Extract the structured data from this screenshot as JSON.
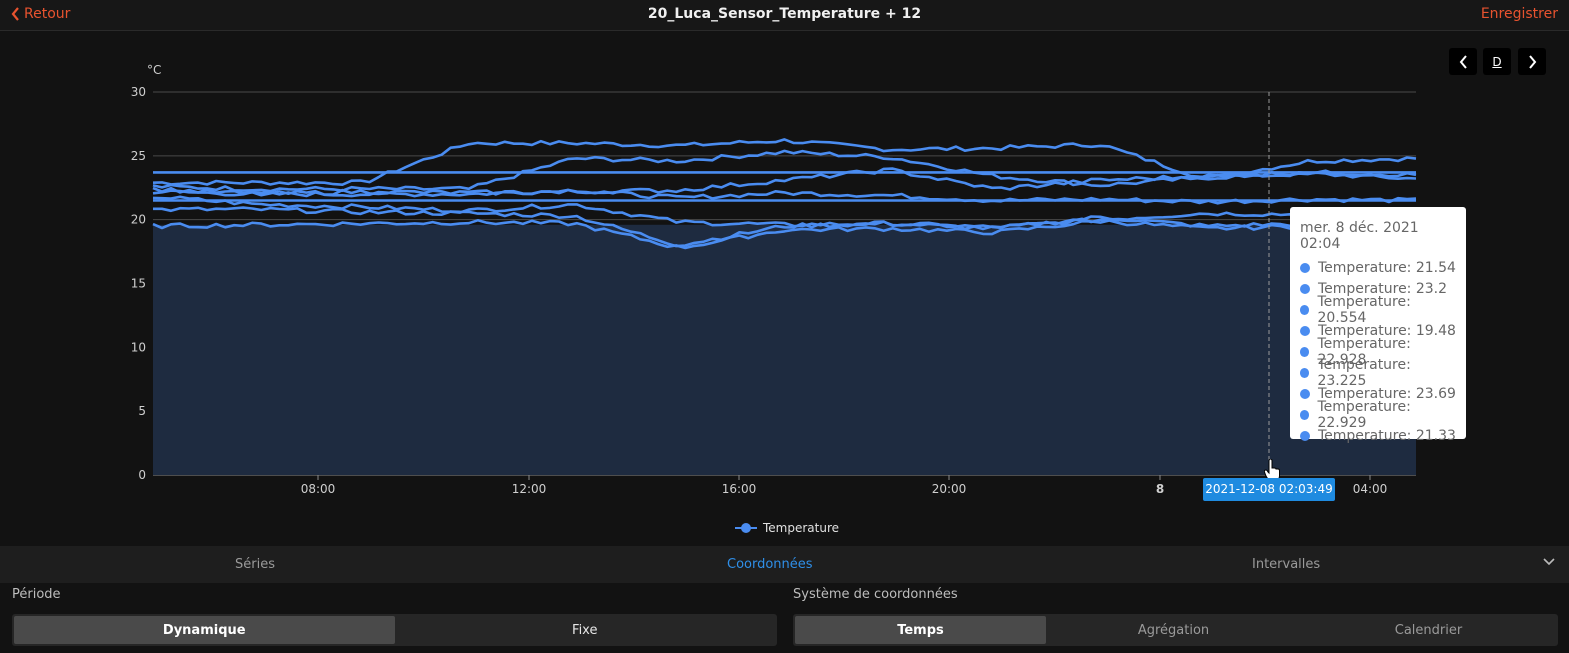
{
  "header": {
    "back_label": "Retour",
    "title": "20_Luca_Sensor_Temperature + 12",
    "save_label": "Enregistrer"
  },
  "chart_nav": {
    "prev_icon": "chevron-left-icon",
    "period_label": "D",
    "next_icon": "chevron-right-icon"
  },
  "chart_data": {
    "type": "line",
    "ylabel": "°C",
    "ylim": [
      0,
      30
    ],
    "yticks": [
      0,
      5,
      10,
      15,
      20,
      25,
      30
    ],
    "xticks": [
      "08:00",
      "12:00",
      "16:00",
      "20:00",
      "8",
      "04:00"
    ],
    "legend": "Temperature",
    "legend_placement": "bottom-center",
    "grid": true,
    "color": "#4a8cf0",
    "fill_color": "#1e2b40",
    "series": [
      {
        "name": "Temperature",
        "values": [
          23.7,
          23.7,
          23.7,
          23.7,
          23.7,
          23.7,
          23.7,
          23.7,
          23.7,
          23.7,
          23.7,
          23.7,
          23.7
        ]
      },
      {
        "name": "Temperature",
        "values": [
          22.9,
          22.9,
          22.9,
          26.0,
          26.0,
          25.8,
          26.2,
          25.5,
          25.6,
          25.9,
          23.2,
          24.6,
          24.8
        ]
      },
      {
        "name": "Temperature",
        "values": [
          22.6,
          22.4,
          22.4,
          22.4,
          24.8,
          24.6,
          25.3,
          24.9,
          23.4,
          22.7,
          23.3,
          23.6,
          23.2
        ]
      },
      {
        "name": "Temperature",
        "values": [
          22.2,
          22.0,
          22.0,
          22.0,
          22.3,
          21.7,
          22.1,
          21.9,
          21.5,
          21.6,
          21.4,
          21.6,
          21.5
        ]
      },
      {
        "name": "Temperature",
        "values": [
          21.5,
          21.5,
          21.5,
          21.5,
          21.5,
          21.5,
          21.5,
          21.5,
          21.5,
          21.5,
          21.5,
          21.5,
          21.5
        ]
      },
      {
        "name": "Temperature",
        "values": [
          21.8,
          21.2,
          21.0,
          20.7,
          21.2,
          19.8,
          19.6,
          19.7,
          19.4,
          20.0,
          20.5,
          20.4,
          20.5
        ]
      },
      {
        "name": "Temperature",
        "values": [
          20.8,
          20.8,
          20.6,
          20.5,
          20.3,
          18.0,
          19.5,
          19.7,
          19.3,
          20.2,
          19.5,
          19.7,
          19.6
        ]
      },
      {
        "name": "Temperature",
        "values": [
          19.5,
          19.6,
          19.7,
          19.8,
          19.7,
          17.8,
          19.2,
          19.3,
          19.0,
          19.9,
          19.3,
          19.5,
          19.5
        ]
      },
      {
        "name": "Temperature",
        "values": [
          22.4,
          22.0,
          22.2,
          22.1,
          22.2,
          22.3,
          23.1,
          23.9,
          22.4,
          23.1,
          23.4,
          23.7,
          23.5
        ]
      }
    ]
  },
  "tooltip": {
    "title": "mer. 8 déc. 2021 02:04",
    "rows": [
      "Temperature: 21.54",
      "Temperature: 23.2",
      "Temperature: 20.554",
      "Temperature: 19.48",
      "Temperature: 22.928",
      "Temperature: 23.225",
      "Temperature: 23.69",
      "Temperature: 22.929",
      "Temperature: 21.33"
    ]
  },
  "cursor_time_label": "2021-12-08 02:03:49",
  "tabs": {
    "series": "Séries",
    "coordinates": "Coordonnées",
    "intervals": "Intervalles",
    "active": "coordinates"
  },
  "periode": {
    "label": "Période",
    "options": [
      "Dynamique",
      "Fixe"
    ],
    "selected": "Dynamique"
  },
  "coord_system": {
    "label": "Système de coordonnées",
    "options": [
      "Temps",
      "Agrégation",
      "Calendrier"
    ],
    "selected": "Temps"
  }
}
